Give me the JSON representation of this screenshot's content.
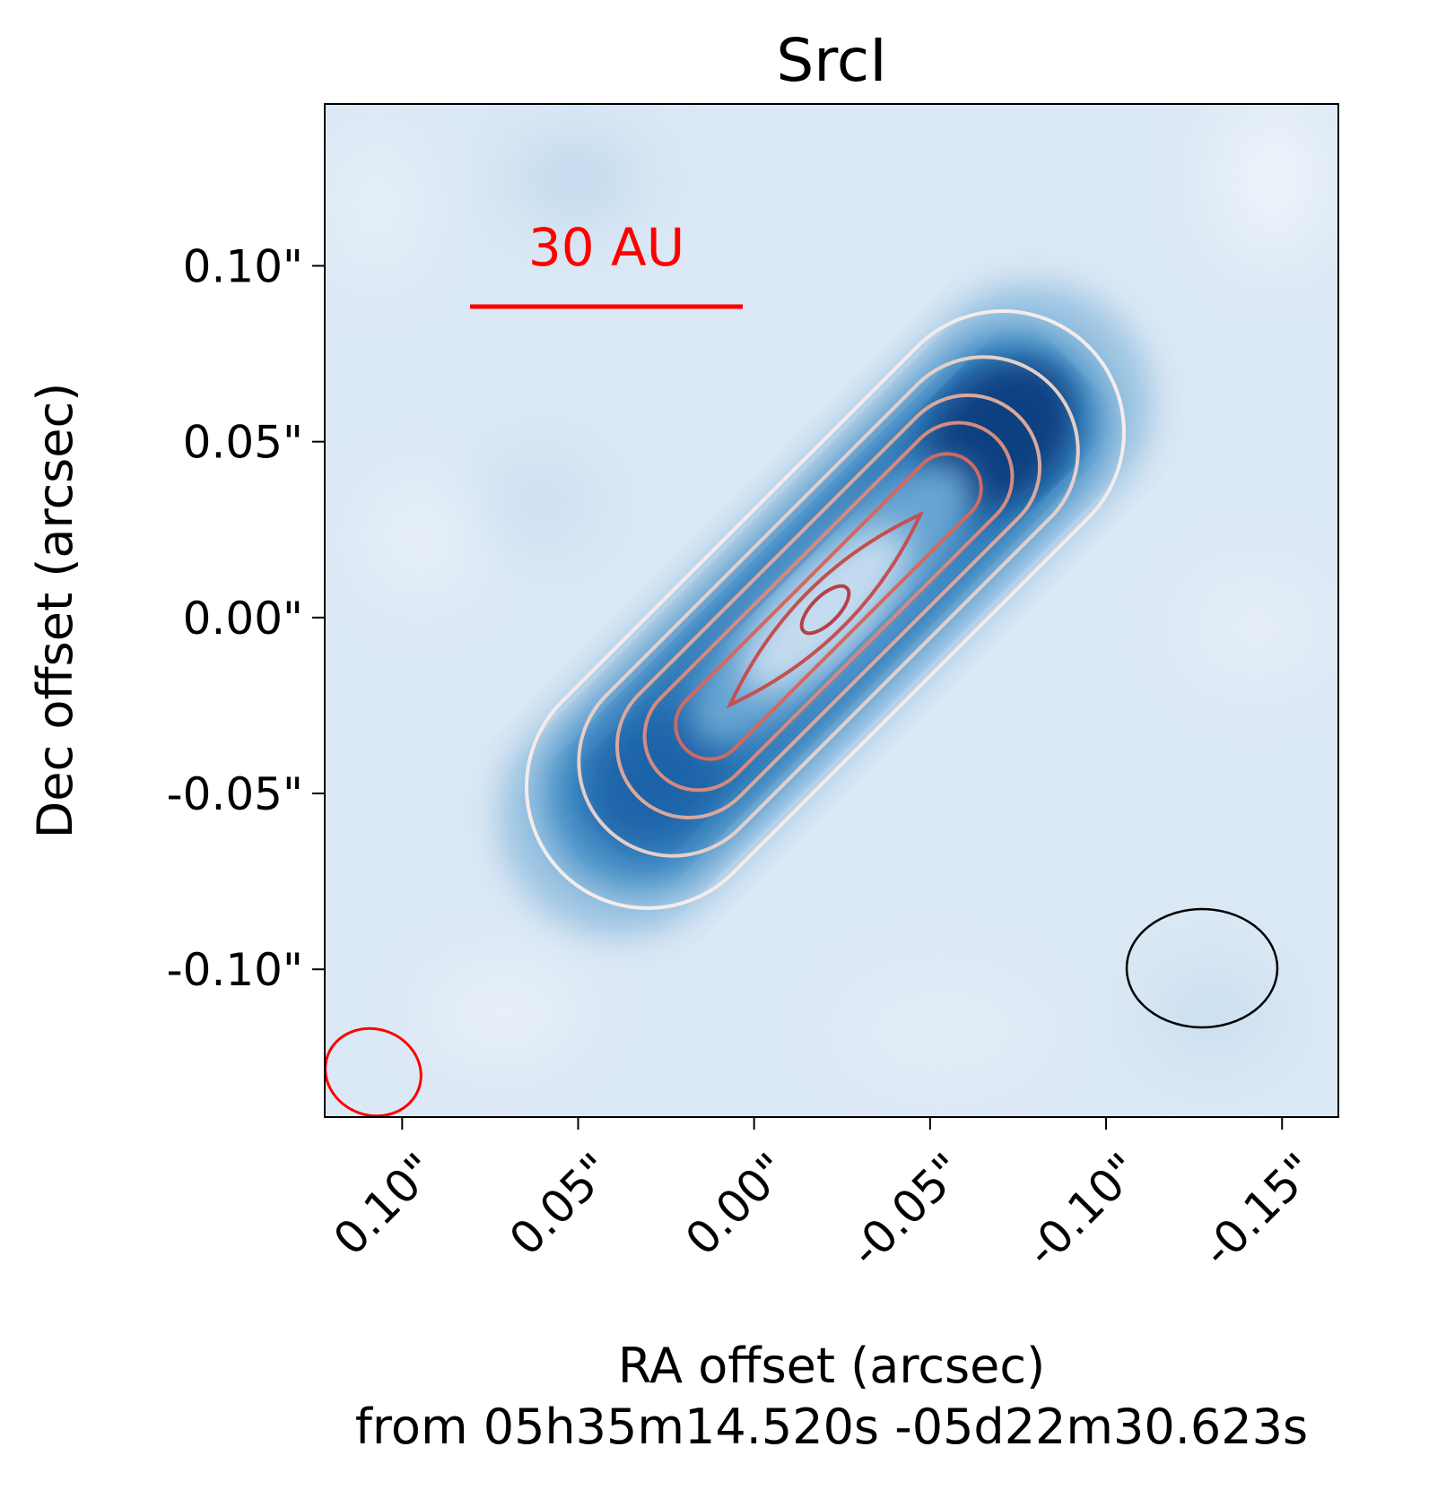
{
  "chart_data": {
    "type": "heatmap",
    "title": "SrcI",
    "xlabel": "RA offset (arcsec)",
    "xlabel_line2": "from 05h35m14.520s -05d22m30.623s",
    "ylabel": "Dec offset (arcsec)",
    "xlim": [
      0.122,
      -0.166
    ],
    "ylim": [
      -0.142,
      0.146
    ],
    "x_ticks": [
      0.1,
      0.05,
      0.0,
      -0.05,
      -0.1,
      -0.15
    ],
    "x_tick_labels": [
      "0.10\"",
      "0.05\"",
      "0.00\"",
      "-0.05\"",
      "-0.10\"",
      "-0.15\""
    ],
    "y_ticks": [
      0.1,
      0.05,
      0.0,
      -0.05,
      -0.1
    ],
    "y_tick_labels": [
      "0.10\"",
      "0.05\"",
      "0.00\"",
      "-0.05\"",
      "-0.10\""
    ],
    "colormap": "Blues",
    "contour_colormap": "Reds",
    "contour_levels": 7,
    "scalebar": {
      "label": "30 AU",
      "color": "#ff0000"
    },
    "beams": [
      {
        "color": "#ff0000",
        "position": "bottom-left"
      },
      {
        "color": "#000000",
        "position": "bottom-right"
      }
    ]
  }
}
